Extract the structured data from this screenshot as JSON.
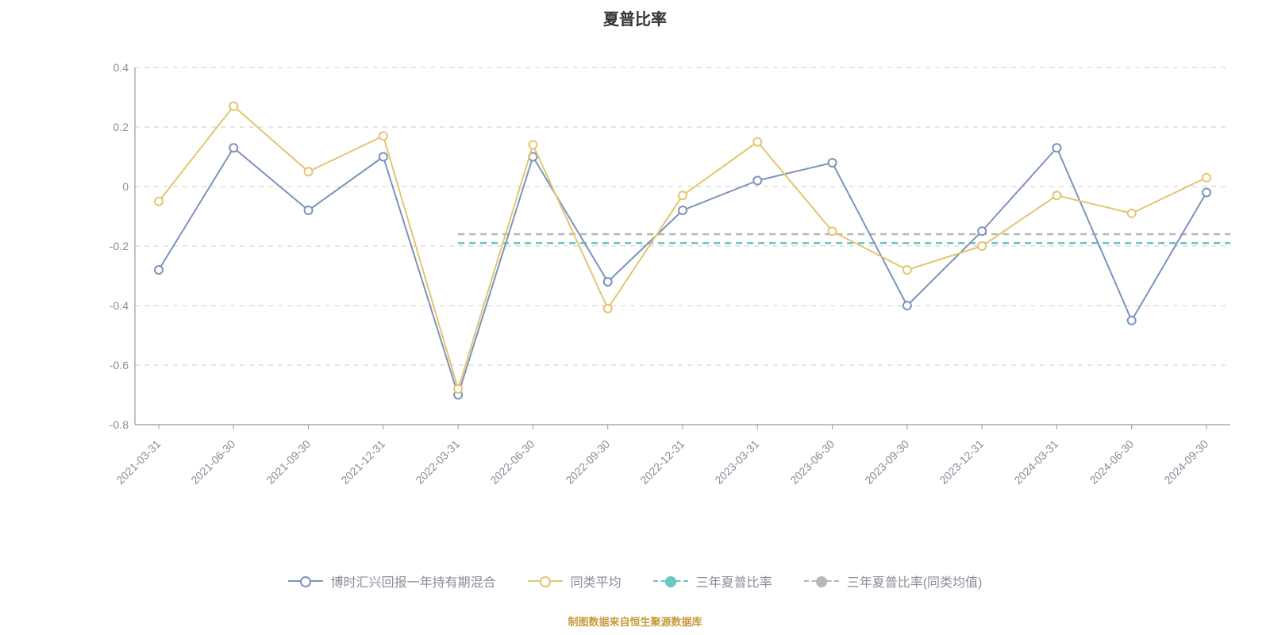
{
  "chart": {
    "type": "line",
    "title": "夏普比率",
    "title_fontsize": 20,
    "title_color": "#333333",
    "background_color": "#ffffff",
    "categories": [
      "2021-03-31",
      "2021-06-30",
      "2021-09-30",
      "2021-12-31",
      "2022-03-31",
      "2022-06-30",
      "2022-09-30",
      "2022-12-31",
      "2023-03-31",
      "2023-06-30",
      "2023-09-30",
      "2023-12-31",
      "2024-03-31",
      "2024-06-30",
      "2024-09-30"
    ],
    "x_label_fontsize": 14,
    "x_label_color": "#8a8c99",
    "x_label_rotation": -45,
    "ylim": [
      -0.8,
      0.4
    ],
    "yticks": [
      -0.8,
      -0.6,
      -0.4,
      -0.2,
      0,
      0.2,
      0.4
    ],
    "y_label_fontsize": 14,
    "y_label_color": "#8a8c99",
    "grid_color": "#cccccc",
    "grid_dash": "6,6",
    "axis_line_color": "#999999",
    "series": [
      {
        "name": "博时汇兴回报一年持有期混合",
        "color": "#7b93bd",
        "line_width": 2,
        "marker_size": 10,
        "marker_border": 2,
        "marker_fill": "#ffffff",
        "values": [
          -0.28,
          0.13,
          -0.08,
          0.1,
          -0.7,
          0.1,
          -0.32,
          -0.08,
          0.02,
          0.08,
          -0.4,
          -0.15,
          0.13,
          -0.45,
          -0.02
        ]
      },
      {
        "name": "同类平均",
        "color": "#e2c66f",
        "line_width": 2,
        "marker_size": 10,
        "marker_border": 2,
        "marker_fill": "#ffffff",
        "values": [
          -0.05,
          0.27,
          0.05,
          0.17,
          -0.68,
          0.14,
          -0.41,
          -0.03,
          0.15,
          -0.15,
          -0.28,
          -0.2,
          -0.03,
          -0.09,
          0.03
        ]
      }
    ],
    "ref_lines": [
      {
        "name": "三年夏普比率",
        "color": "#6cc6c2",
        "line_width": 2.5,
        "dash": "8,6",
        "value": -0.19,
        "x_start_index": 4,
        "marker_size": 12,
        "marker_border": 2,
        "marker_fill": "#6cc6c2"
      },
      {
        "name": "三年夏普比率(同类均值)",
        "color": "#b7b7b7",
        "line_width": 2.5,
        "dash": "8,6",
        "value": -0.16,
        "x_start_index": 4,
        "marker_size": 12,
        "marker_border": 2,
        "marker_fill": "#b7b7b7"
      }
    ],
    "legend": {
      "position": "bottom-center",
      "fontsize": 16,
      "text_color": "#8a8c99",
      "items": [
        {
          "label": "博时汇兴回报一年持有期混合",
          "color": "#7b93bd",
          "style": "solid",
          "marker_fill": "#ffffff",
          "marker_size": 14,
          "marker_border": 2
        },
        {
          "label": "同类平均",
          "color": "#e2c66f",
          "style": "solid",
          "marker_fill": "#ffffff",
          "marker_size": 14,
          "marker_border": 2
        },
        {
          "label": "三年夏普比率",
          "color": "#6cc6c2",
          "style": "dashed",
          "marker_fill": "#6cc6c2",
          "marker_size": 14,
          "marker_border": 2
        },
        {
          "label": "三年夏普比率(同类均值)",
          "color": "#b7b7b7",
          "style": "dashed",
          "marker_fill": "#b7b7b7",
          "marker_size": 14,
          "marker_border": 2
        }
      ]
    },
    "footer_text": "制图数据来自恒生聚源数据库",
    "footer_color": "#c89b3c",
    "footer_fontsize": 13
  }
}
